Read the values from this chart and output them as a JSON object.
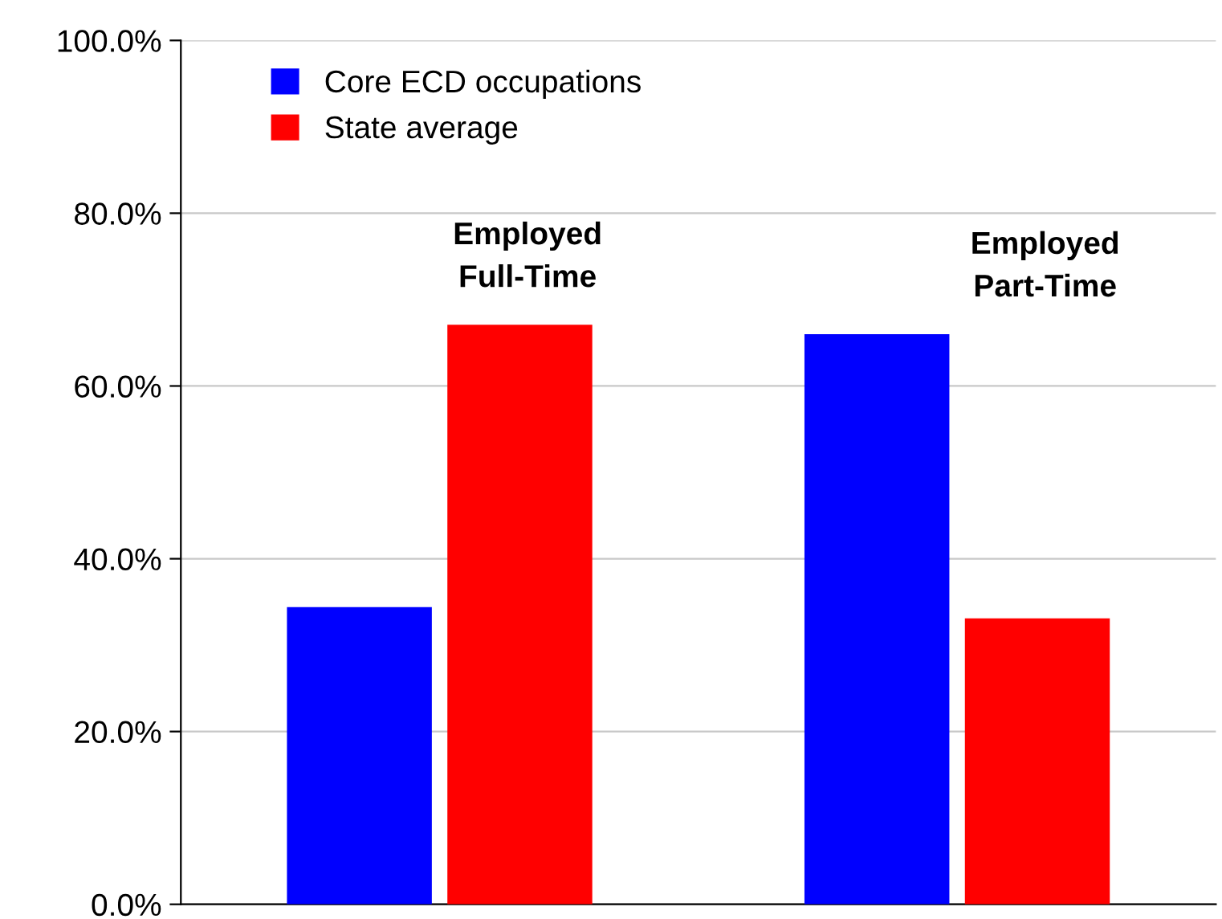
{
  "chart_data": {
    "type": "bar",
    "categories": [
      "Employed\nFull-Time",
      "Employed\nPart-Time"
    ],
    "series": [
      {
        "name": "Core ECD occupations",
        "color": "#0000ff",
        "values": [
          34.4,
          66.0
        ]
      },
      {
        "name": "State average",
        "color": "#ff0000",
        "values": [
          67.1,
          33.1
        ]
      }
    ],
    "ylim": [
      0,
      100
    ],
    "yticks": [
      {
        "value": 0,
        "label": "0.0%"
      },
      {
        "value": 20,
        "label": "20.0%"
      },
      {
        "value": 40,
        "label": "40.0%"
      },
      {
        "value": 60,
        "label": "60.0%"
      },
      {
        "value": 80,
        "label": "80.0%"
      },
      {
        "value": 100,
        "label": "100.0%"
      }
    ],
    "grid": "y",
    "legend": "top left"
  }
}
